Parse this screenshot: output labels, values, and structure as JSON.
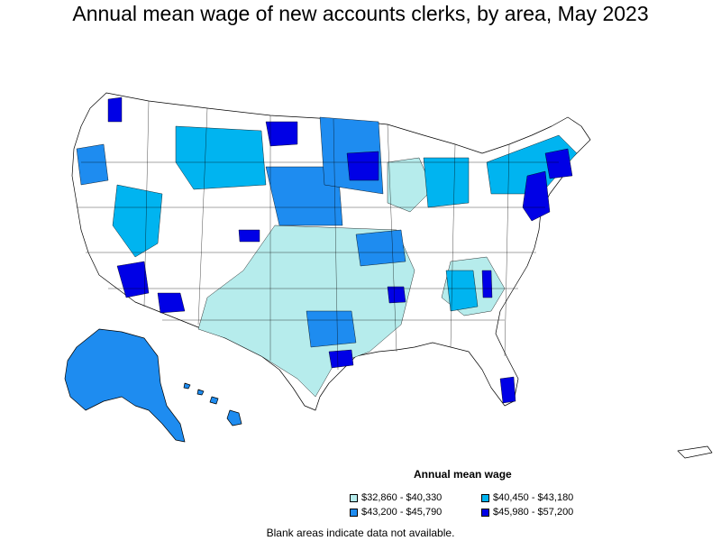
{
  "title": "Annual mean wage of new accounts clerks, by area, May 2023",
  "legend": {
    "title": "Annual mean wage",
    "items": [
      {
        "range": "$32,860 - $40,330",
        "color": "#b6ecec"
      },
      {
        "range": "$40,450 - $43,180",
        "color": "#00b4f0"
      },
      {
        "range": "$43,200 - $45,790",
        "color": "#1e8cf0"
      },
      {
        "range": "$45,980 - $57,200",
        "color": "#0000e6"
      }
    ]
  },
  "footnote": "Blank areas indicate data not available.",
  "colors": {
    "blank": "#ffffff",
    "border": "#000000"
  }
}
